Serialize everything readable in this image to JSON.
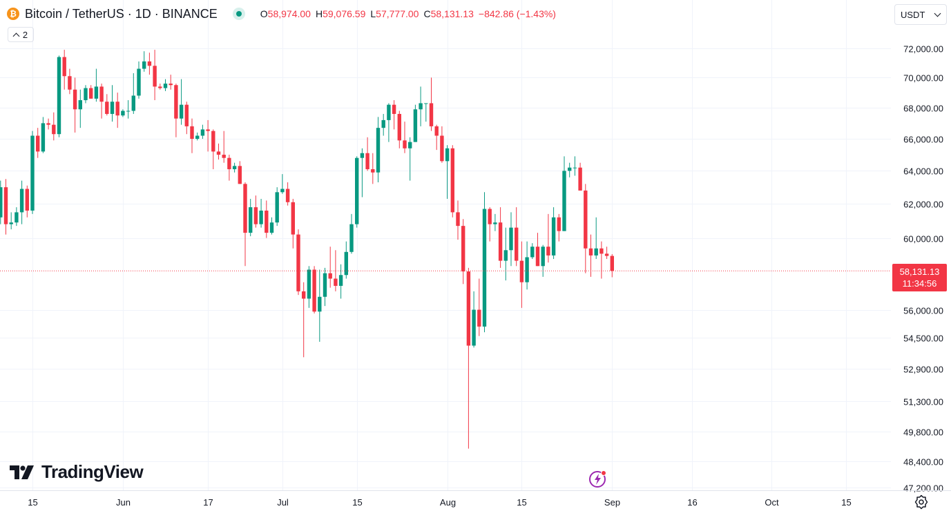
{
  "header": {
    "coin_icon": "bitcoin-icon",
    "title": "Bitcoin / TetherUS · 1D · BINANCE",
    "ohlc": {
      "o_label": "O",
      "o_value": "58,974.00",
      "h_label": "H",
      "h_value": "59,076.59",
      "l_label": "L",
      "l_value": "57,777.00",
      "c_label": "C",
      "c_value": "58,131.13",
      "change": "−842.86 (−1.43%)"
    }
  },
  "indicators_count": "2",
  "currency": "USDT",
  "price_tag": {
    "price": "58,131.13",
    "countdown": "11:34:56"
  },
  "logo_text": "TradingView",
  "colors": {
    "up": "#089981",
    "down": "#f23645",
    "text": "#131722",
    "grid": "#f0f3fa"
  },
  "icons": {
    "settings": "gear-icon",
    "replay": "spark-icon",
    "dropdown": "chevron-down-icon"
  },
  "chart_data": {
    "type": "candlestick",
    "grid": true,
    "y_axis": {
      "scale": "log",
      "ticks": [
        72000,
        70000,
        68000,
        66000,
        64000,
        62000,
        60000,
        56000,
        54500,
        52900,
        51300,
        49800,
        48400,
        47200
      ],
      "tick_labels": [
        "72,000.00",
        "70,000.00",
        "68,000.00",
        "66,000.00",
        "64,000.00",
        "62,000.00",
        "60,000.00",
        "56,000.00",
        "54,500.00",
        "52,900.00",
        "51,300.00",
        "49,800.00",
        "48,400.00",
        "47,200.00"
      ]
    },
    "x_axis": {
      "ticks": [
        {
          "date": "2024-05-15",
          "label": "15"
        },
        {
          "date": "2024-06-01",
          "label": "Jun"
        },
        {
          "date": "2024-06-17",
          "label": "17"
        },
        {
          "date": "2024-07-01",
          "label": "Jul"
        },
        {
          "date": "2024-07-15",
          "label": "15"
        },
        {
          "date": "2024-08-01",
          "label": "Aug"
        },
        {
          "date": "2024-08-15",
          "label": "15"
        },
        {
          "date": "2024-09-01",
          "label": "Sep"
        },
        {
          "date": "2024-09-16",
          "label": "16"
        },
        {
          "date": "2024-10-01",
          "label": "Oct"
        },
        {
          "date": "2024-10-15",
          "label": "15"
        }
      ]
    },
    "last_price": 58131.13,
    "candles": [
      {
        "date": "2024-05-09",
        "o": 61200,
        "h": 63400,
        "l": 60800,
        "c": 63000
      },
      {
        "date": "2024-05-10",
        "o": 63000,
        "h": 63500,
        "l": 60200,
        "c": 60800
      },
      {
        "date": "2024-05-11",
        "o": 60800,
        "h": 61500,
        "l": 60500,
        "c": 60900
      },
      {
        "date": "2024-05-12",
        "o": 60900,
        "h": 61800,
        "l": 60700,
        "c": 61500
      },
      {
        "date": "2024-05-13",
        "o": 61500,
        "h": 63400,
        "l": 60800,
        "c": 62900
      },
      {
        "date": "2024-05-14",
        "o": 62900,
        "h": 63100,
        "l": 61200,
        "c": 61600
      },
      {
        "date": "2024-05-15",
        "o": 61600,
        "h": 66500,
        "l": 61400,
        "c": 66200
      },
      {
        "date": "2024-05-16",
        "o": 66200,
        "h": 66700,
        "l": 64800,
        "c": 65200
      },
      {
        "date": "2024-05-17",
        "o": 65200,
        "h": 67400,
        "l": 65100,
        "c": 67000
      },
      {
        "date": "2024-05-18",
        "o": 67000,
        "h": 67300,
        "l": 66600,
        "c": 66900
      },
      {
        "date": "2024-05-19",
        "o": 66900,
        "h": 67700,
        "l": 65900,
        "c": 66300
      },
      {
        "date": "2024-05-20",
        "o": 66300,
        "h": 71500,
        "l": 66100,
        "c": 71400
      },
      {
        "date": "2024-05-21",
        "o": 71400,
        "h": 71900,
        "l": 69200,
        "c": 70100
      },
      {
        "date": "2024-05-22",
        "o": 70100,
        "h": 70600,
        "l": 68900,
        "c": 69200
      },
      {
        "date": "2024-05-23",
        "o": 69200,
        "h": 70000,
        "l": 66400,
        "c": 67900
      },
      {
        "date": "2024-05-24",
        "o": 67900,
        "h": 69200,
        "l": 66700,
        "c": 68500
      },
      {
        "date": "2024-05-25",
        "o": 68500,
        "h": 69500,
        "l": 68300,
        "c": 69300
      },
      {
        "date": "2024-05-26",
        "o": 69300,
        "h": 69500,
        "l": 68600,
        "c": 68600
      },
      {
        "date": "2024-05-27",
        "o": 68600,
        "h": 70600,
        "l": 68400,
        "c": 69400
      },
      {
        "date": "2024-05-28",
        "o": 69400,
        "h": 69600,
        "l": 67300,
        "c": 68400
      },
      {
        "date": "2024-05-29",
        "o": 68400,
        "h": 68900,
        "l": 67500,
        "c": 67600
      },
      {
        "date": "2024-05-30",
        "o": 67600,
        "h": 69500,
        "l": 67100,
        "c": 68400
      },
      {
        "date": "2024-05-31",
        "o": 68400,
        "h": 69000,
        "l": 66700,
        "c": 67500
      },
      {
        "date": "2024-06-01",
        "o": 67500,
        "h": 67900,
        "l": 67400,
        "c": 67800
      },
      {
        "date": "2024-06-02",
        "o": 67800,
        "h": 68500,
        "l": 67300,
        "c": 67800
      },
      {
        "date": "2024-06-03",
        "o": 67800,
        "h": 70300,
        "l": 67600,
        "c": 68800
      },
      {
        "date": "2024-06-04",
        "o": 68800,
        "h": 71100,
        "l": 68600,
        "c": 70600
      },
      {
        "date": "2024-06-05",
        "o": 70600,
        "h": 71800,
        "l": 70400,
        "c": 71100
      },
      {
        "date": "2024-06-06",
        "o": 71100,
        "h": 71700,
        "l": 70200,
        "c": 70800
      },
      {
        "date": "2024-06-07",
        "o": 70800,
        "h": 71900,
        "l": 68500,
        "c": 69400
      },
      {
        "date": "2024-06-08",
        "o": 69400,
        "h": 69600,
        "l": 69200,
        "c": 69300
      },
      {
        "date": "2024-06-09",
        "o": 69300,
        "h": 69900,
        "l": 69100,
        "c": 69600
      },
      {
        "date": "2024-06-10",
        "o": 69600,
        "h": 70200,
        "l": 69200,
        "c": 69500
      },
      {
        "date": "2024-06-11",
        "o": 69500,
        "h": 69600,
        "l": 66100,
        "c": 67300
      },
      {
        "date": "2024-06-12",
        "o": 67300,
        "h": 69900,
        "l": 66900,
        "c": 68200
      },
      {
        "date": "2024-06-13",
        "o": 68200,
        "h": 68400,
        "l": 66300,
        "c": 66800
      },
      {
        "date": "2024-06-14",
        "o": 66800,
        "h": 67300,
        "l": 65100,
        "c": 66000
      },
      {
        "date": "2024-06-15",
        "o": 66000,
        "h": 66400,
        "l": 65900,
        "c": 66200
      },
      {
        "date": "2024-06-16",
        "o": 66200,
        "h": 66900,
        "l": 66000,
        "c": 66600
      },
      {
        "date": "2024-06-17",
        "o": 66600,
        "h": 67200,
        "l": 65200,
        "c": 66500
      },
      {
        "date": "2024-06-18",
        "o": 66500,
        "h": 66600,
        "l": 64100,
        "c": 65200
      },
      {
        "date": "2024-06-19",
        "o": 65200,
        "h": 65700,
        "l": 64700,
        "c": 65000
      },
      {
        "date": "2024-06-20",
        "o": 65000,
        "h": 66500,
        "l": 64500,
        "c": 64800
      },
      {
        "date": "2024-06-21",
        "o": 64800,
        "h": 65000,
        "l": 63400,
        "c": 64100
      },
      {
        "date": "2024-06-22",
        "o": 64100,
        "h": 64500,
        "l": 63900,
        "c": 64300
      },
      {
        "date": "2024-06-23",
        "o": 64300,
        "h": 64600,
        "l": 63200,
        "c": 63200
      },
      {
        "date": "2024-06-24",
        "o": 63200,
        "h": 63300,
        "l": 58400,
        "c": 60300
      },
      {
        "date": "2024-06-25",
        "o": 60300,
        "h": 62300,
        "l": 60100,
        "c": 61800
      },
      {
        "date": "2024-06-26",
        "o": 61800,
        "h": 62500,
        "l": 60600,
        "c": 60800
      },
      {
        "date": "2024-06-27",
        "o": 60800,
        "h": 62300,
        "l": 60600,
        "c": 61600
      },
      {
        "date": "2024-06-28",
        "o": 61600,
        "h": 62200,
        "l": 60000,
        "c": 60300
      },
      {
        "date": "2024-06-29",
        "o": 60300,
        "h": 61200,
        "l": 60200,
        "c": 60900
      },
      {
        "date": "2024-06-30",
        "o": 60900,
        "h": 63000,
        "l": 60700,
        "c": 62700
      },
      {
        "date": "2024-07-01",
        "o": 62700,
        "h": 63800,
        "l": 62600,
        "c": 62900
      },
      {
        "date": "2024-07-02",
        "o": 62900,
        "h": 63300,
        "l": 61900,
        "c": 62100
      },
      {
        "date": "2024-07-03",
        "o": 62100,
        "h": 62300,
        "l": 59400,
        "c": 60200
      },
      {
        "date": "2024-07-04",
        "o": 60200,
        "h": 60500,
        "l": 56800,
        "c": 57000
      },
      {
        "date": "2024-07-05",
        "o": 57000,
        "h": 57500,
        "l": 53500,
        "c": 56600
      },
      {
        "date": "2024-07-06",
        "o": 56600,
        "h": 58400,
        "l": 56100,
        "c": 58200
      },
      {
        "date": "2024-07-07",
        "o": 58200,
        "h": 58400,
        "l": 55800,
        "c": 55900
      },
      {
        "date": "2024-07-08",
        "o": 55900,
        "h": 58200,
        "l": 54300,
        "c": 56700
      },
      {
        "date": "2024-07-09",
        "o": 56700,
        "h": 58300,
        "l": 56200,
        "c": 58000
      },
      {
        "date": "2024-07-10",
        "o": 58000,
        "h": 59500,
        "l": 57200,
        "c": 57700
      },
      {
        "date": "2024-07-11",
        "o": 57700,
        "h": 59300,
        "l": 57000,
        "c": 57300
      },
      {
        "date": "2024-07-12",
        "o": 57300,
        "h": 58500,
        "l": 56600,
        "c": 57900
      },
      {
        "date": "2024-07-13",
        "o": 57900,
        "h": 59800,
        "l": 57700,
        "c": 59200
      },
      {
        "date": "2024-07-14",
        "o": 59200,
        "h": 61400,
        "l": 59100,
        "c": 60800
      },
      {
        "date": "2024-07-15",
        "o": 60800,
        "h": 64900,
        "l": 60600,
        "c": 64800
      },
      {
        "date": "2024-07-16",
        "o": 64800,
        "h": 65400,
        "l": 62400,
        "c": 65100
      },
      {
        "date": "2024-07-17",
        "o": 65100,
        "h": 66100,
        "l": 64000,
        "c": 64100
      },
      {
        "date": "2024-07-18",
        "o": 64100,
        "h": 65100,
        "l": 63200,
        "c": 63900
      },
      {
        "date": "2024-07-19",
        "o": 63900,
        "h": 67400,
        "l": 63300,
        "c": 66700
      },
      {
        "date": "2024-07-20",
        "o": 66700,
        "h": 67600,
        "l": 66200,
        "c": 67200
      },
      {
        "date": "2024-07-21",
        "o": 67200,
        "h": 68300,
        "l": 65800,
        "c": 68200
      },
      {
        "date": "2024-07-22",
        "o": 68200,
        "h": 68500,
        "l": 66600,
        "c": 67600
      },
      {
        "date": "2024-07-23",
        "o": 67600,
        "h": 67800,
        "l": 65400,
        "c": 65900
      },
      {
        "date": "2024-07-24",
        "o": 65900,
        "h": 67100,
        "l": 65100,
        "c": 65400
      },
      {
        "date": "2024-07-25",
        "o": 65400,
        "h": 66100,
        "l": 63400,
        "c": 65800
      },
      {
        "date": "2024-07-26",
        "o": 65800,
        "h": 68200,
        "l": 65800,
        "c": 67900
      },
      {
        "date": "2024-07-27",
        "o": 67900,
        "h": 69400,
        "l": 66800,
        "c": 68300
      },
      {
        "date": "2024-07-28",
        "o": 68300,
        "h": 68300,
        "l": 67100,
        "c": 68300
      },
      {
        "date": "2024-07-29",
        "o": 68300,
        "h": 70000,
        "l": 66500,
        "c": 66800
      },
      {
        "date": "2024-07-30",
        "o": 66800,
        "h": 66900,
        "l": 65300,
        "c": 66200
      },
      {
        "date": "2024-07-31",
        "o": 66200,
        "h": 66800,
        "l": 64500,
        "c": 64600
      },
      {
        "date": "2024-08-01",
        "o": 64600,
        "h": 65600,
        "l": 62300,
        "c": 65400
      },
      {
        "date": "2024-08-02",
        "o": 65400,
        "h": 65600,
        "l": 61200,
        "c": 61500
      },
      {
        "date": "2024-08-03",
        "o": 61500,
        "h": 62200,
        "l": 59900,
        "c": 60700
      },
      {
        "date": "2024-08-04",
        "o": 60700,
        "h": 61100,
        "l": 57400,
        "c": 58100
      },
      {
        "date": "2024-08-05",
        "o": 58100,
        "h": 58300,
        "l": 49000,
        "c": 54100
      },
      {
        "date": "2024-08-06",
        "o": 54100,
        "h": 57000,
        "l": 54000,
        "c": 56000
      },
      {
        "date": "2024-08-07",
        "o": 56000,
        "h": 57700,
        "l": 54600,
        "c": 55100
      },
      {
        "date": "2024-08-08",
        "o": 55100,
        "h": 62700,
        "l": 54800,
        "c": 61700
      },
      {
        "date": "2024-08-09",
        "o": 61700,
        "h": 61800,
        "l": 59800,
        "c": 60800
      },
      {
        "date": "2024-08-10",
        "o": 60800,
        "h": 61400,
        "l": 60400,
        "c": 60900
      },
      {
        "date": "2024-08-11",
        "o": 60900,
        "h": 61800,
        "l": 58300,
        "c": 58700
      },
      {
        "date": "2024-08-12",
        "o": 58700,
        "h": 60600,
        "l": 57600,
        "c": 59300
      },
      {
        "date": "2024-08-13",
        "o": 59300,
        "h": 61500,
        "l": 58400,
        "c": 60600
      },
      {
        "date": "2024-08-14",
        "o": 60600,
        "h": 61800,
        "l": 58400,
        "c": 58700
      },
      {
        "date": "2024-08-15",
        "o": 58700,
        "h": 59800,
        "l": 56100,
        "c": 57500
      },
      {
        "date": "2024-08-16",
        "o": 57500,
        "h": 59800,
        "l": 57100,
        "c": 58900
      },
      {
        "date": "2024-08-17",
        "o": 58900,
        "h": 59700,
        "l": 58800,
        "c": 59500
      },
      {
        "date": "2024-08-18",
        "o": 59500,
        "h": 60300,
        "l": 58400,
        "c": 58400
      },
      {
        "date": "2024-08-19",
        "o": 58400,
        "h": 59600,
        "l": 57800,
        "c": 59500
      },
      {
        "date": "2024-08-20",
        "o": 59500,
        "h": 61400,
        "l": 58600,
        "c": 59000
      },
      {
        "date": "2024-08-21",
        "o": 59000,
        "h": 61800,
        "l": 58800,
        "c": 61200
      },
      {
        "date": "2024-08-22",
        "o": 61200,
        "h": 61400,
        "l": 59800,
        "c": 60400
      },
      {
        "date": "2024-08-23",
        "o": 60400,
        "h": 64900,
        "l": 60400,
        "c": 64000
      },
      {
        "date": "2024-08-24",
        "o": 64000,
        "h": 64500,
        "l": 63600,
        "c": 64200
      },
      {
        "date": "2024-08-25",
        "o": 64200,
        "h": 64900,
        "l": 63700,
        "c": 64200
      },
      {
        "date": "2024-08-26",
        "o": 64200,
        "h": 64500,
        "l": 62800,
        "c": 62800
      },
      {
        "date": "2024-08-27",
        "o": 62800,
        "h": 63200,
        "l": 58000,
        "c": 59400
      },
      {
        "date": "2024-08-28",
        "o": 59400,
        "h": 60200,
        "l": 57800,
        "c": 59000
      },
      {
        "date": "2024-08-29",
        "o": 59000,
        "h": 61200,
        "l": 58800,
        "c": 59400
      },
      {
        "date": "2024-08-30",
        "o": 59400,
        "h": 59800,
        "l": 57700,
        "c": 59100
      },
      {
        "date": "2024-08-31",
        "o": 59100,
        "h": 59500,
        "l": 58800,
        "c": 58974
      },
      {
        "date": "2024-09-01",
        "o": 58974,
        "h": 59076.59,
        "l": 57777,
        "c": 58131.13
      }
    ]
  }
}
